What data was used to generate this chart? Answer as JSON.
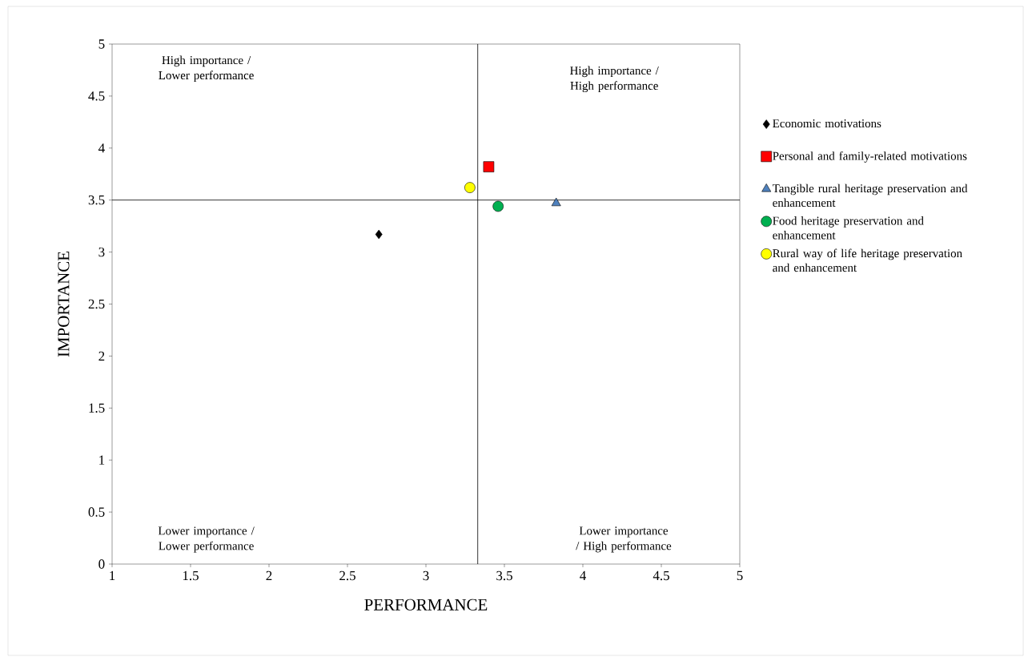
{
  "chart_data": {
    "type": "scatter",
    "xlabel": "PERFORMANCE",
    "ylabel": "IMPORTANCE",
    "xlim": [
      1,
      5
    ],
    "ylim": [
      0,
      5
    ],
    "xticks": [
      1,
      1.5,
      2,
      2.5,
      3,
      3.5,
      4,
      4.5,
      5
    ],
    "yticks": [
      0,
      0.5,
      1,
      1.5,
      2,
      2.5,
      3,
      3.5,
      4,
      4.5,
      5
    ],
    "grid": false,
    "legend": "right",
    "series": [
      {
        "name": "Economic motivations",
        "color": "#000000",
        "marker": "diamond",
        "x": [
          2.7
        ],
        "values": [
          3.17
        ]
      },
      {
        "name": "Personal and family-related motivations",
        "color": "#ff0000",
        "marker": "square",
        "x": [
          3.4
        ],
        "values": [
          3.82
        ]
      },
      {
        "name": "Tangible rural heritage preservation and enhancement",
        "color": "#4f81bd",
        "marker": "triangle",
        "x": [
          3.83
        ],
        "values": [
          3.47
        ]
      },
      {
        "name": "Food heritage preservation and enhancement",
        "color": "#00b050",
        "marker": "circle",
        "x": [
          3.46
        ],
        "values": [
          3.44
        ]
      },
      {
        "name": "Rural way of life heritage preservation and enhancement",
        "color": "#ffff00",
        "marker": "circle",
        "x": [
          3.28
        ],
        "values": [
          3.62
        ]
      }
    ],
    "ref_lines": [
      {
        "axis": "x",
        "value": 3.33
      },
      {
        "axis": "y",
        "value": 3.5
      }
    ],
    "annotations": [
      "High importance / Lower performance",
      "High importance / High performance",
      "Lower importance / Lower performance",
      "Lower importance / High performance"
    ]
  }
}
